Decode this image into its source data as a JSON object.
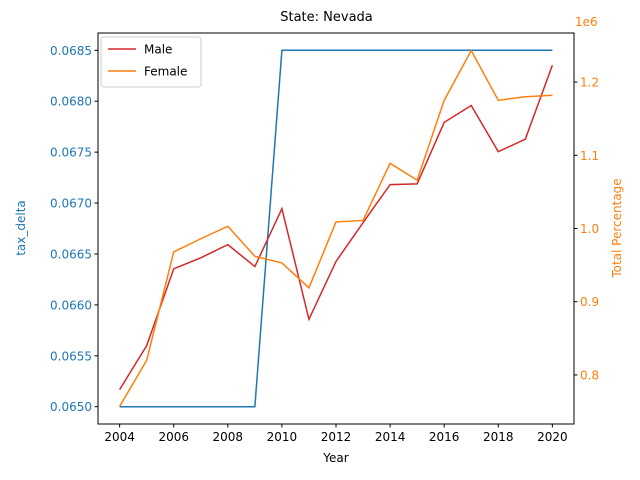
{
  "chart_data": {
    "type": "line",
    "title": "State: Nevada",
    "xlabel": "Year",
    "x": [
      2004,
      2005,
      2006,
      2007,
      2008,
      2009,
      2010,
      2011,
      2012,
      2013,
      2014,
      2015,
      2016,
      2017,
      2018,
      2019,
      2020
    ],
    "xlim": [
      2003.2,
      2020.8
    ],
    "xticks": [
      "2004",
      "2006",
      "2008",
      "2010",
      "2012",
      "2014",
      "2016",
      "2018",
      "2020"
    ],
    "left_axis": {
      "label": "tax_delta",
      "color": "#1f77b4",
      "ylim": [
        0.06483,
        0.06867
      ],
      "ticks": [
        "0.0650",
        "0.0655",
        "0.0660",
        "0.0665",
        "0.0670",
        "0.0675",
        "0.0680",
        "0.0685"
      ],
      "series": [
        {
          "values": [
            0.065,
            0.065,
            0.065,
            0.065,
            0.065,
            0.065,
            0.0685,
            0.0685,
            0.0685,
            0.0685,
            0.0685,
            0.0685,
            0.0685,
            0.0685,
            0.0685,
            0.0685,
            0.0685
          ],
          "color": "#1f77b4"
        }
      ]
    },
    "right_axis": {
      "label": "Total Percentage",
      "color": "#ff7f0e",
      "offset_text": "1e6",
      "ylim": [
        0.733,
        1.267
      ],
      "ticks": [
        "0.8",
        "0.9",
        "1.0",
        "1.1",
        "1.2"
      ],
      "series": [
        {
          "name": "Male",
          "color": "#d62728",
          "values": [
            0.78,
            0.84,
            0.945,
            0.96,
            0.978,
            0.948,
            1.027,
            0.876,
            0.955,
            1.008,
            1.06,
            1.061,
            1.145,
            1.168,
            1.105,
            1.122,
            1.223
          ]
        },
        {
          "name": "Female",
          "color": "#ff7f0e",
          "values": [
            0.757,
            0.82,
            0.968,
            0.986,
            1.003,
            0.962,
            0.953,
            0.919,
            1.009,
            1.011,
            1.089,
            1.066,
            1.175,
            1.243,
            1.175,
            1.18,
            1.182
          ]
        }
      ]
    },
    "legend": {
      "placement": "upper-left",
      "entries": [
        "Male",
        "Female"
      ]
    }
  }
}
